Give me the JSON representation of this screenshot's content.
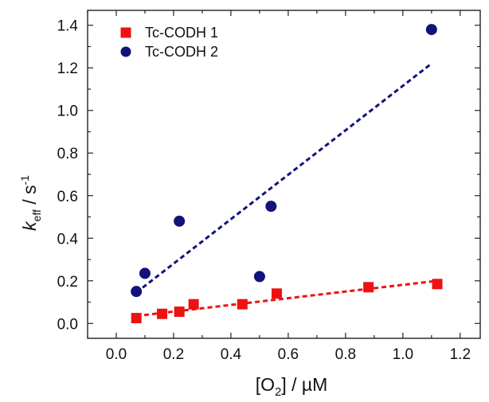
{
  "chart_data": {
    "type": "scatter",
    "xlabel": {
      "pre": "[O",
      "sub": "2",
      "post": "] / µM"
    },
    "ylabel": {
      "main": "k",
      "sub": "eff",
      "mid": " / s",
      "sup": "-1"
    },
    "xlim": [
      -0.1,
      1.27
    ],
    "ylim": [
      -0.07,
      1.47
    ],
    "x_ticks": [
      "0.0",
      "0.2",
      "0.4",
      "0.6",
      "0.8",
      "1.0",
      "1.2"
    ],
    "y_ticks": [
      "0.0",
      "0.2",
      "0.4",
      "0.6",
      "0.8",
      "1.0",
      "1.2",
      "1.4"
    ],
    "grid": false,
    "legend_position": "top-left",
    "series": [
      {
        "name": "Tc-CODH 1",
        "color": "#ee1111",
        "marker": "square",
        "points": [
          [
            0.07,
            0.025
          ],
          [
            0.16,
            0.045
          ],
          [
            0.22,
            0.055
          ],
          [
            0.27,
            0.09
          ],
          [
            0.44,
            0.09
          ],
          [
            0.56,
            0.14
          ],
          [
            0.88,
            0.17
          ],
          [
            1.12,
            0.185
          ]
        ],
        "fit": [
          [
            0.07,
            0.035
          ],
          [
            1.12,
            0.2
          ]
        ]
      },
      {
        "name": "Tc-CODH 2",
        "color": "#12127a",
        "marker": "circle",
        "points": [
          [
            0.07,
            0.15
          ],
          [
            0.1,
            0.235
          ],
          [
            0.22,
            0.48
          ],
          [
            0.5,
            0.22
          ],
          [
            0.54,
            0.55
          ],
          [
            1.1,
            1.38
          ]
        ],
        "fit": [
          [
            0.07,
            0.145
          ],
          [
            1.1,
            1.22
          ]
        ]
      }
    ]
  }
}
